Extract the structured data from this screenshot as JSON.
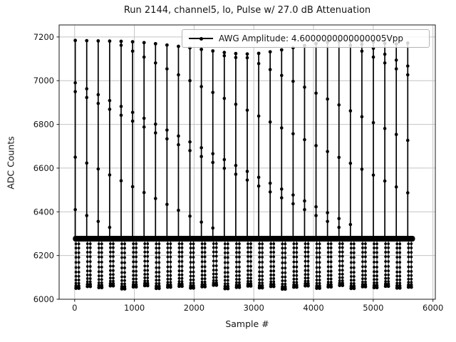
{
  "figure": {
    "title": "Run 2144, channel5, lo, Pulse w/ 27.0 dB Attenuation",
    "xlabel": "Sample #",
    "ylabel": "ADC Counts",
    "legend": {
      "label": "AWG Amplitude: 4.6000000000000005Vpp",
      "marker": "line-with-dot"
    },
    "colors": {
      "data": "#000000",
      "grid": "#c4c4c4",
      "spine": "#1a1a1a",
      "legend_border": "#b4b4b4",
      "background": "#ffffff"
    }
  },
  "chart_data": {
    "type": "line",
    "title": "Run 2144, channel5, lo, Pulse w/ 27.0 dB Attenuation",
    "xlabel": "Sample #",
    "ylabel": "ADC Counts",
    "series_name": "AWG Amplitude: 4.6000000000000005Vpp",
    "marker_style": "black dots with connecting line",
    "grid": true,
    "legend_position": "upper center-right",
    "xlim": [
      -260,
      6040
    ],
    "ylim": [
      6000,
      7255
    ],
    "xticks": [
      0,
      1000,
      2000,
      3000,
      4000,
      5000,
      6000
    ],
    "yticks": [
      6000,
      6200,
      6400,
      6600,
      6800,
      7000,
      7200
    ],
    "baseline": {
      "value_top": 6290,
      "value_bottom": 6264,
      "s_start": 0,
      "s_end": 5670
    },
    "pulse_period_samples": 192,
    "tail_offsets_samples": [
      12,
      60
    ],
    "tail_fractions": [
      0.05,
      0.14,
      0.24,
      0.34,
      0.45,
      0.56,
      0.66,
      0.75,
      0.83,
      0.9,
      0.95,
      0.99
    ],
    "pulses": [
      {
        "s": 10,
        "peak": 7184,
        "min": 6052,
        "dots": [
          6990,
          6950,
          6650,
          6410
        ]
      },
      {
        "s": 202,
        "peak": 7183,
        "min": 6060,
        "dots": [
          6963,
          6923,
          6623,
          6383
        ]
      },
      {
        "s": 394,
        "peak": 7182,
        "min": 6055,
        "dots": [
          6936,
          6896,
          6596,
          6356
        ]
      },
      {
        "s": 586,
        "peak": 7181,
        "min": 6063,
        "dots": [
          6909,
          6869,
          6569,
          6329
        ]
      },
      {
        "s": 778,
        "peak": 7180,
        "min": 6049,
        "dots": [
          6882,
          6842,
          6542,
          7162
        ]
      },
      {
        "s": 970,
        "peak": 7178,
        "min": 6058,
        "dots": [
          6855,
          6815,
          6515,
          7135
        ]
      },
      {
        "s": 1162,
        "peak": 7174,
        "min": 6064,
        "dots": [
          6828,
          6788,
          6488,
          7108
        ]
      },
      {
        "s": 1354,
        "peak": 7169,
        "min": 6051,
        "dots": [
          6801,
          6761,
          6461,
          7081
        ]
      },
      {
        "s": 1546,
        "peak": 7163,
        "min": 6057,
        "dots": [
          6774,
          6734,
          6434,
          7054
        ]
      },
      {
        "s": 1738,
        "peak": 7157,
        "min": 6061,
        "dots": [
          6747,
          6707,
          6407,
          7027
        ]
      },
      {
        "s": 1930,
        "peak": 7150,
        "min": 6053,
        "dots": [
          6720,
          6680,
          6380,
          7000
        ]
      },
      {
        "s": 2122,
        "peak": 7143,
        "min": 6059,
        "dots": [
          6693,
          6653,
          6353,
          6973
        ]
      },
      {
        "s": 2314,
        "peak": 7136,
        "min": 6066,
        "dots": [
          6666,
          6626,
          6326,
          6946
        ]
      },
      {
        "s": 2506,
        "peak": 7129,
        "min": 6050,
        "dots": [
          6639,
          6599,
          7114,
          6919
        ]
      },
      {
        "s": 2698,
        "peak": 7124,
        "min": 6056,
        "dots": [
          6612,
          6572,
          7106,
          6892
        ]
      },
      {
        "s": 2890,
        "peak": 7122,
        "min": 6062,
        "dots": [
          6585,
          6545,
          7105,
          6865
        ]
      },
      {
        "s": 3082,
        "peak": 7125,
        "min": 6054,
        "dots": [
          6558,
          6518,
          7078,
          6838
        ]
      },
      {
        "s": 3274,
        "peak": 7132,
        "min": 6060,
        "dots": [
          6531,
          6491,
          7051,
          6811
        ]
      },
      {
        "s": 3466,
        "peak": 7141,
        "min": 6048,
        "dots": [
          6504,
          6464,
          7024,
          6784
        ]
      },
      {
        "s": 3658,
        "peak": 7151,
        "min": 6057,
        "dots": [
          6477,
          6437,
          6997,
          6757
        ]
      },
      {
        "s": 3850,
        "peak": 7161,
        "min": 6063,
        "dots": [
          6450,
          6410,
          6970,
          6730
        ]
      },
      {
        "s": 4042,
        "peak": 7170,
        "min": 6052,
        "dots": [
          6423,
          6383,
          6943,
          6703
        ]
      },
      {
        "s": 4234,
        "peak": 7176,
        "min": 6058,
        "dots": [
          6396,
          6356,
          6916,
          6676
        ]
      },
      {
        "s": 4426,
        "peak": 7180,
        "min": 6065,
        "dots": [
          6369,
          6329,
          6889,
          6649
        ]
      },
      {
        "s": 4618,
        "peak": 7182,
        "min": 6051,
        "dots": [
          6342,
          7162,
          6862,
          6622
        ]
      },
      {
        "s": 4810,
        "peak": 7181,
        "min": 6059,
        "dots": [
          7166,
          7135,
          6835,
          6595
        ]
      },
      {
        "s": 5002,
        "peak": 7177,
        "min": 6055,
        "dots": [
          7148,
          7108,
          6808,
          6568
        ]
      },
      {
        "s": 5194,
        "peak": 7171,
        "min": 6061,
        "dots": [
          7121,
          7081,
          6781,
          6541
        ]
      },
      {
        "s": 5386,
        "peak": 7168,
        "min": 6053,
        "dots": [
          7094,
          7054,
          6754,
          6514
        ]
      },
      {
        "s": 5578,
        "peak": 7172,
        "min": 6057,
        "dots": [
          7067,
          7027,
          6727,
          6487
        ]
      }
    ]
  }
}
